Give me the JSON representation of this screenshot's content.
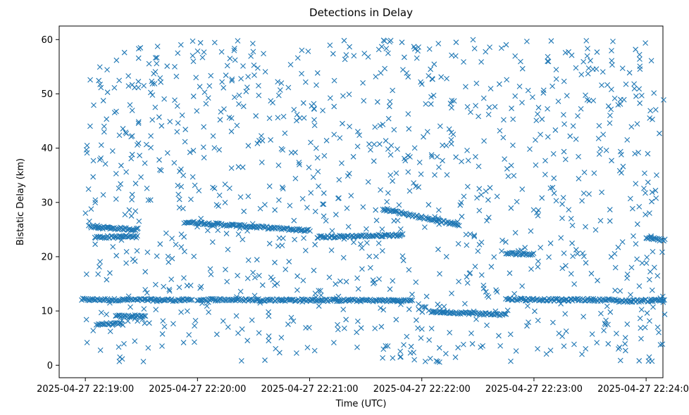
{
  "chart_data": {
    "type": "scatter",
    "title": "Detections in Delay",
    "xlabel": "Time (UTC)",
    "ylabel": "Bistatic Delay (km)",
    "marker": "x",
    "color": "#1f77b4",
    "grid": false,
    "legend": "none",
    "xlim": [
      "2025-04-27 22:18:46",
      "2025-04-27 22:24:09"
    ],
    "ylim": [
      -2.3,
      62.5
    ],
    "x_ticks": [
      "2025-04-27 22:19:00",
      "2025-04-27 22:20:00",
      "2025-04-27 22:21:00",
      "2025-04-27 22:22:00",
      "2025-04-27 22:23:00",
      "2025-04-27 22:24:00"
    ],
    "y_ticks": [
      0,
      10,
      20,
      30,
      40,
      50,
      60
    ],
    "time_range": [
      "2025-04-27 22:19:00",
      "2025-04-27 22:24:10"
    ],
    "delay_range_km": [
      0.5,
      60
    ],
    "tracks": [
      {
        "times": [
          "22:18:58",
          "22:19:57"
        ],
        "delay_km": [
          12.1,
          12.0
        ]
      },
      {
        "times": [
          "22:19:06",
          "22:19:20"
        ],
        "delay_km": [
          7.6,
          7.6
        ]
      },
      {
        "times": [
          "22:19:16",
          "22:19:32"
        ],
        "delay_km": [
          9.0,
          9.1
        ]
      },
      {
        "times": [
          "22:19:02",
          "22:19:28"
        ],
        "delay_km": [
          25.5,
          25.0
        ]
      },
      {
        "times": [
          "22:19:05",
          "22:19:28"
        ],
        "delay_km": [
          23.6,
          23.7
        ]
      },
      {
        "times": [
          "22:19:53",
          "22:21:00"
        ],
        "delay_km": [
          26.4,
          24.8
        ]
      },
      {
        "times": [
          "22:20:00",
          "22:21:55"
        ],
        "delay_km": [
          12.1,
          11.9
        ]
      },
      {
        "times": [
          "22:21:04",
          "22:21:50"
        ],
        "delay_km": [
          23.6,
          24.0
        ]
      },
      {
        "times": [
          "22:21:39",
          "22:22:20"
        ],
        "delay_km": [
          28.8,
          25.8
        ]
      },
      {
        "times": [
          "22:22:05",
          "22:22:45"
        ],
        "delay_km": [
          9.9,
          9.3
        ]
      },
      {
        "times": [
          "22:22:45",
          "22:23:00"
        ],
        "delay_km": [
          20.6,
          20.5
        ]
      },
      {
        "times": [
          "22:22:45",
          "22:23:20"
        ],
        "delay_km": [
          12.2,
          12.0
        ]
      },
      {
        "times": [
          "22:23:20",
          "22:23:45"
        ],
        "delay_km": [
          12.1,
          12.0
        ]
      },
      {
        "times": [
          "22:23:45",
          "22:24:10"
        ],
        "delay_km": [
          11.8,
          12.0
        ]
      },
      {
        "times": [
          "22:24:00",
          "22:24:10"
        ],
        "delay_km": [
          23.5,
          23.0
        ]
      }
    ]
  }
}
